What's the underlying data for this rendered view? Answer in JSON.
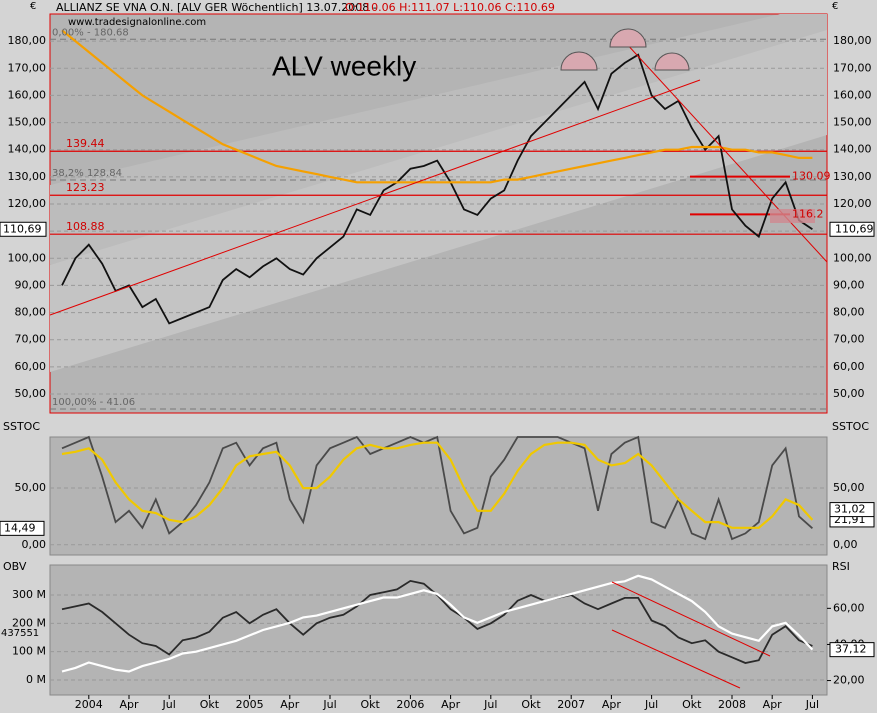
{
  "chart_data": [
    {
      "type": "line",
      "title": "ALV weekly",
      "subtitle": "ALLIANZ SE VNA O.N. [ALV GER  Wöchentlich] 13.07.2008 -",
      "quote": "O:110.06 H:111.07 L:110.06 C:110.69",
      "source": "www.tradesignalonline.com",
      "currency": "€",
      "categories": [
        null,
        null,
        "2004",
        null,
        null,
        "Apr",
        null,
        null,
        "Jul",
        null,
        null,
        "Okt",
        null,
        null,
        "2005",
        null,
        null,
        "Apr",
        null,
        null,
        "Jul",
        null,
        null,
        "Okt",
        null,
        null,
        "2006",
        null,
        null,
        "Apr",
        null,
        null,
        "Jul",
        null,
        null,
        "Okt",
        null,
        null,
        "2007",
        null,
        null,
        "Apr",
        null,
        null,
        "Jul",
        null,
        null,
        "Okt",
        null,
        null,
        "2008",
        null,
        null,
        "Apr",
        null,
        null,
        "Jul"
      ],
      "series": [
        {
          "color": "#111111",
          "values": [
            90,
            100,
            105,
            98,
            88,
            90,
            82,
            85,
            76,
            78,
            80,
            82,
            92,
            96,
            93,
            97,
            100,
            96,
            94,
            100,
            104,
            108,
            118,
            116,
            125,
            128,
            133,
            134,
            136,
            128,
            118,
            116,
            122,
            125,
            136,
            145,
            150,
            155,
            160,
            165,
            155,
            168,
            172,
            175,
            160,
            155,
            158,
            148,
            140,
            145,
            118,
            112,
            108,
            122,
            128,
            114,
            110.69
          ]
        },
        {
          "color": "#f5a000",
          "values": [
            184,
            180,
            176,
            172,
            168,
            164,
            160,
            157,
            154,
            151,
            148,
            145,
            142,
            140,
            138,
            136,
            134,
            133,
            132,
            131,
            130,
            129,
            128,
            128,
            128,
            128,
            128,
            128,
            128,
            128,
            128,
            128,
            128,
            129,
            129,
            130,
            131,
            132,
            133,
            134,
            135,
            136,
            137,
            138,
            139,
            140,
            140,
            141,
            141,
            141,
            140,
            140,
            139,
            139,
            138,
            137,
            137
          ]
        }
      ],
      "ylim": [
        43,
        190
      ],
      "yticks": [
        {
          "value": 50,
          "label": "50,00"
        },
        {
          "value": 60,
          "label": "60,00"
        },
        {
          "value": 70,
          "label": "70,00"
        },
        {
          "value": 80,
          "label": "80,00"
        },
        {
          "value": 90,
          "label": "90,00"
        },
        {
          "value": 100,
          "label": "100,00"
        },
        {
          "value": 110,
          "label": "110,00"
        },
        {
          "value": 120,
          "label": "120,00"
        },
        {
          "value": 130,
          "label": "130,00"
        },
        {
          "value": 140,
          "label": "140,00"
        },
        {
          "value": 150,
          "label": "150,00"
        },
        {
          "value": 160,
          "label": "160,00"
        },
        {
          "value": 170,
          "label": "170,00"
        },
        {
          "value": 180,
          "label": "180,00"
        }
      ],
      "levels": [
        {
          "value": 139.44,
          "label": "139.44"
        },
        {
          "value": 123.23,
          "label": "123.23"
        },
        {
          "value": 108.88,
          "label": "108.88"
        }
      ],
      "fib_levels": [
        {
          "value": 180.68,
          "label": "0,00% - 180.68"
        },
        {
          "value": 128.84,
          "label": "38,2% 128.84"
        },
        {
          "value": 41.06,
          "label": "100,00% - 41.06"
        }
      ],
      "right_labels": [
        {
          "value": 130.09,
          "label": "130.09"
        },
        {
          "value": 116.2,
          "label": "116.2"
        }
      ],
      "last": {
        "value": 110.69,
        "label": "110,69"
      }
    },
    {
      "type": "line",
      "title": "SSTOC",
      "series": [
        {
          "color": "#4a4a4a",
          "values": [
            85,
            90,
            95,
            60,
            20,
            30,
            15,
            40,
            10,
            20,
            35,
            55,
            85,
            90,
            70,
            85,
            90,
            40,
            20,
            70,
            85,
            90,
            95,
            80,
            85,
            90,
            95,
            90,
            95,
            30,
            10,
            15,
            60,
            75,
            95,
            95,
            95,
            95,
            90,
            85,
            30,
            80,
            90,
            95,
            20,
            15,
            40,
            10,
            5,
            40,
            5,
            10,
            20,
            70,
            85,
            25,
            14.49
          ]
        },
        {
          "color": "#f0c800",
          "values": [
            80,
            82,
            85,
            75,
            55,
            40,
            30,
            28,
            22,
            20,
            25,
            35,
            50,
            70,
            78,
            80,
            82,
            70,
            50,
            50,
            60,
            75,
            85,
            88,
            85,
            85,
            88,
            90,
            90,
            75,
            50,
            30,
            30,
            45,
            65,
            80,
            88,
            90,
            90,
            88,
            75,
            70,
            72,
            80,
            70,
            55,
            40,
            30,
            20,
            20,
            15,
            15,
            15,
            25,
            40,
            35,
            21.91
          ]
        }
      ],
      "ylim": [
        -9,
        95
      ],
      "yticks": [
        {
          "value": 0,
          "label": "0,00"
        },
        {
          "value": 50,
          "label": "50,00"
        }
      ],
      "last_labels": [
        {
          "value": 14.49,
          "label": "14,49"
        },
        {
          "value": 21.91,
          "label": "21,91"
        },
        {
          "value": 31.02,
          "label": "31,02"
        }
      ]
    },
    {
      "type": "line",
      "title": "OBV",
      "title2": "RSI",
      "series": [
        {
          "color": "#2a2a2a",
          "values": [
            250,
            260,
            270,
            240,
            200,
            160,
            130,
            120,
            90,
            140,
            150,
            170,
            220,
            240,
            200,
            230,
            250,
            200,
            160,
            200,
            220,
            230,
            260,
            300,
            310,
            320,
            350,
            340,
            300,
            250,
            220,
            180,
            200,
            230,
            280,
            300,
            280,
            290,
            300,
            270,
            250,
            270,
            290,
            290,
            210,
            190,
            150,
            130,
            140,
            100,
            80,
            60,
            70,
            160,
            190,
            140,
            120
          ]
        },
        {
          "color": "#ffffff",
          "axis": "y2",
          "values": [
            25,
            27,
            30,
            28,
            26,
            25,
            28,
            30,
            32,
            35,
            36,
            38,
            40,
            42,
            45,
            48,
            50,
            52,
            55,
            56,
            58,
            60,
            62,
            64,
            66,
            66,
            68,
            70,
            68,
            62,
            55,
            52,
            55,
            58,
            60,
            62,
            64,
            66,
            68,
            70,
            72,
            74,
            75,
            78,
            76,
            72,
            68,
            64,
            58,
            50,
            46,
            44,
            42,
            50,
            52,
            45,
            37.12
          ]
        }
      ],
      "ylim": [
        -53,
        406
      ],
      "yticks": [
        {
          "value": 0,
          "label": "0 M"
        },
        {
          "value": 100,
          "label": "100 M"
        },
        {
          "value": 200,
          "label": "200 M"
        },
        {
          "value": 300,
          "label": "300 M"
        }
      ],
      "y2lim": [
        12,
        84
      ],
      "y2ticks": [
        {
          "value": 20,
          "label": "20,00"
        },
        {
          "value": 40,
          "label": "40,00"
        },
        {
          "value": 60,
          "label": "60,00"
        }
      ],
      "obv_label": "437551",
      "last": {
        "value": 37.12,
        "label": "37,12"
      }
    }
  ]
}
